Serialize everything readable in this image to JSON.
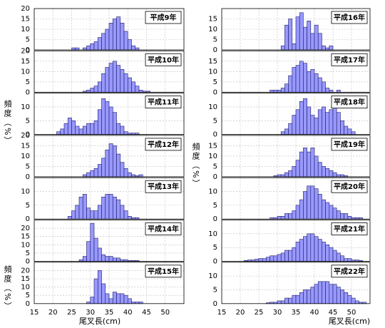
{
  "y_label": "頻度（%）",
  "x_label": "尾叉長(cm)",
  "chart_data": [
    {
      "type": "histogram",
      "title": "平成9年",
      "bins": [
        25,
        26,
        27,
        28,
        29,
        30,
        31,
        32,
        33,
        34,
        35,
        36,
        37,
        38,
        39,
        40,
        41,
        42,
        43
      ],
      "values": [
        1,
        1,
        0,
        1,
        2,
        3,
        4,
        6,
        8,
        10,
        13,
        15,
        16,
        13,
        9,
        5,
        2,
        1
      ],
      "color": "#9999ff",
      "xlim": [
        15,
        55
      ],
      "xticks": [
        15,
        20,
        25,
        30,
        35,
        40,
        45,
        50
      ],
      "ylim": [
        0,
        20
      ],
      "yticks": [
        0,
        5,
        10,
        15,
        20
      ],
      "grid": true
    },
    {
      "type": "histogram",
      "title": "平成10年",
      "bins": [
        28,
        29,
        30,
        31,
        32,
        33,
        34,
        35,
        36,
        37,
        38,
        39,
        40,
        41,
        42,
        43,
        44,
        45,
        46
      ],
      "values": [
        0.5,
        1,
        2,
        3,
        5,
        9,
        12,
        14,
        15,
        13,
        11,
        9,
        7,
        5,
        3,
        1,
        0.5,
        0.5
      ],
      "color": "#9999ff",
      "xlim": [
        15,
        55
      ],
      "xticks": [
        15,
        20,
        25,
        30,
        35,
        40,
        45,
        50
      ],
      "ylim": [
        0,
        20
      ],
      "yticks": [
        0,
        5,
        10,
        15,
        20
      ],
      "grid": true
    },
    {
      "type": "histogram",
      "title": "平成11年",
      "bins": [
        21,
        22,
        23,
        24,
        25,
        26,
        27,
        28,
        29,
        30,
        31,
        32,
        33,
        34,
        35,
        36,
        37,
        38,
        39,
        40,
        41,
        42,
        43
      ],
      "values": [
        1,
        2,
        4,
        6,
        5,
        3,
        2,
        3,
        4,
        4,
        5,
        9,
        13,
        12,
        10,
        8,
        4,
        3,
        1,
        0.5,
        0.5,
        0.5
      ],
      "color": "#9999ff",
      "xlim": [
        15,
        55
      ],
      "xticks": [
        15,
        20,
        25,
        30,
        35,
        40,
        45,
        50
      ],
      "ylim": [
        0,
        15
      ],
      "yticks": [
        0,
        5,
        10
      ],
      "grid": true
    },
    {
      "type": "histogram",
      "title": "平成12年",
      "bins": [
        28,
        29,
        30,
        31,
        32,
        33,
        34,
        35,
        36,
        37,
        38,
        39,
        40,
        41,
        42,
        43,
        44
      ],
      "values": [
        1,
        2,
        3,
        4,
        6,
        9,
        13,
        16,
        15,
        11,
        7,
        4,
        2,
        1,
        0.5,
        1
      ],
      "color": "#9999ff",
      "xlim": [
        15,
        55
      ],
      "xticks": [
        15,
        20,
        25,
        30,
        35,
        40,
        45,
        50
      ],
      "ylim": [
        0,
        20
      ],
      "yticks": [
        0,
        5,
        10,
        15,
        20
      ],
      "grid": true
    },
    {
      "type": "histogram",
      "title": "平成13年",
      "bins": [
        24,
        25,
        26,
        27,
        28,
        29,
        30,
        31,
        32,
        33,
        34,
        35,
        36,
        37,
        38,
        39,
        40,
        41,
        42,
        43
      ],
      "values": [
        1,
        3,
        5,
        8,
        9,
        4,
        3,
        3,
        5,
        8,
        9,
        9,
        8,
        7,
        5,
        3,
        1,
        0.5,
        0.5
      ],
      "color": "#9999ff",
      "xlim": [
        15,
        55
      ],
      "xticks": [
        15,
        20,
        25,
        30,
        35,
        40,
        45,
        50
      ],
      "ylim": [
        0,
        15
      ],
      "yticks": [
        0,
        5,
        10
      ],
      "grid": true
    },
    {
      "type": "histogram",
      "title": "平成14年",
      "bins": [
        27,
        28,
        29,
        30,
        31,
        32,
        33,
        34,
        35,
        36,
        37,
        38,
        39,
        40,
        41,
        42,
        43
      ],
      "values": [
        1,
        3,
        12,
        23,
        14,
        8,
        4,
        3,
        3,
        2,
        2,
        1,
        1,
        0.5,
        0.5,
        0.5
      ],
      "color": "#9999ff",
      "xlim": [
        15,
        55
      ],
      "xticks": [
        15,
        20,
        25,
        30,
        35,
        40,
        45,
        50
      ],
      "ylim": [
        0,
        25
      ],
      "yticks": [
        0,
        5,
        10,
        15,
        20
      ],
      "grid": true
    },
    {
      "type": "histogram",
      "title": "平成15年",
      "bins": [
        29,
        30,
        31,
        32,
        33,
        34,
        35,
        36,
        37,
        38,
        39,
        40,
        41,
        42,
        43,
        44
      ],
      "values": [
        1,
        4,
        15,
        20,
        12,
        6,
        3,
        7,
        6,
        6,
        5,
        3,
        1,
        1,
        1
      ],
      "color": "#9999ff",
      "xlim": [
        15,
        55
      ],
      "xticks": [
        15,
        20,
        25,
        30,
        35,
        40,
        45,
        50
      ],
      "ylim": [
        0,
        25
      ],
      "yticks": [
        0,
        5,
        10,
        15,
        20
      ],
      "grid": true
    },
    {
      "type": "histogram",
      "title": "平成16年",
      "bins": [
        31,
        32,
        33,
        34,
        35,
        36,
        37,
        38,
        39,
        40,
        41,
        42,
        43,
        44,
        45
      ],
      "values": [
        2,
        12,
        15,
        3,
        16,
        18,
        11,
        14,
        8,
        12,
        8,
        2,
        1,
        2
      ],
      "color": "#9999ff",
      "xlim": [
        15,
        55
      ],
      "xticks": [
        15,
        20,
        25,
        30,
        35,
        40,
        45,
        50
      ],
      "ylim": [
        0,
        20
      ],
      "yticks": [
        0,
        5,
        10,
        15
      ],
      "grid": true
    },
    {
      "type": "histogram",
      "title": "平成17年",
      "bins": [
        28,
        29,
        30,
        31,
        32,
        33,
        34,
        35,
        36,
        37,
        38,
        39,
        40,
        41,
        42,
        43,
        44,
        45,
        46,
        47
      ],
      "values": [
        1,
        1,
        1,
        2,
        4,
        8,
        12,
        13,
        15,
        14,
        10,
        11,
        9,
        7,
        5,
        2,
        1,
        0,
        1
      ],
      "color": "#9999ff",
      "xlim": [
        15,
        55
      ],
      "xticks": [
        15,
        20,
        25,
        30,
        35,
        40,
        45,
        50
      ],
      "ylim": [
        0,
        20
      ],
      "yticks": [
        0,
        5,
        10,
        15
      ],
      "grid": true
    },
    {
      "type": "histogram",
      "title": "平成18年",
      "bins": [
        31,
        32,
        33,
        34,
        35,
        36,
        37,
        38,
        39,
        40,
        41,
        42,
        43,
        44,
        45,
        46,
        47,
        48,
        49,
        50,
        51
      ],
      "values": [
        1,
        2,
        4,
        7,
        9,
        12,
        13,
        10,
        7,
        6,
        9,
        10,
        8,
        9,
        10,
        8,
        5,
        3,
        2,
        1
      ],
      "color": "#9999ff",
      "xlim": [
        15,
        55
      ],
      "xticks": [
        15,
        20,
        25,
        30,
        35,
        40,
        45,
        50
      ],
      "ylim": [
        0,
        15
      ],
      "yticks": [
        0,
        5,
        10
      ],
      "grid": true
    },
    {
      "type": "histogram",
      "title": "平成19年",
      "bins": [
        29,
        30,
        31,
        32,
        33,
        34,
        35,
        36,
        37,
        38,
        39,
        40,
        41,
        42,
        43,
        44,
        45,
        46,
        47,
        48,
        49
      ],
      "values": [
        0.5,
        1,
        1,
        2,
        3,
        5,
        8,
        12,
        14,
        12,
        14,
        10,
        7,
        5,
        4,
        3,
        2,
        1,
        1,
        0.5
      ],
      "color": "#9999ff",
      "xlim": [
        15,
        55
      ],
      "xticks": [
        15,
        20,
        25,
        30,
        35,
        40,
        45,
        50
      ],
      "ylim": [
        0,
        20
      ],
      "yticks": [
        0,
        5,
        10,
        15
      ],
      "grid": true
    },
    {
      "type": "histogram",
      "title": "平成20年",
      "bins": [
        28,
        29,
        30,
        31,
        32,
        33,
        34,
        35,
        36,
        37,
        38,
        39,
        40,
        41,
        42,
        43,
        44,
        45,
        46,
        47,
        48,
        49,
        50,
        51,
        52,
        53
      ],
      "values": [
        0.5,
        0.5,
        1,
        1,
        2,
        2,
        3,
        5,
        7,
        10,
        12,
        12,
        11,
        9,
        7,
        6,
        5,
        4,
        3,
        2,
        2,
        1,
        0.5,
        0.5,
        0.5
      ],
      "color": "#9999ff",
      "xlim": [
        15,
        55
      ],
      "xticks": [
        15,
        20,
        25,
        30,
        35,
        40,
        45,
        50
      ],
      "ylim": [
        0,
        15
      ],
      "yticks": [
        0,
        5,
        10
      ],
      "grid": true
    },
    {
      "type": "histogram",
      "title": "平成21年",
      "bins": [
        21,
        22,
        23,
        24,
        25,
        26,
        27,
        28,
        29,
        30,
        31,
        32,
        33,
        34,
        35,
        36,
        37,
        38,
        39,
        40,
        41,
        42,
        43,
        44,
        45,
        46,
        47,
        48,
        49,
        50,
        51,
        52,
        53
      ],
      "values": [
        0.3,
        0.5,
        0.5,
        0.8,
        1,
        1,
        1.5,
        2,
        2,
        2.5,
        3,
        4,
        4,
        5,
        7,
        8,
        9,
        10,
        10,
        9,
        8,
        7,
        6,
        5,
        4,
        3,
        2,
        1,
        1,
        0.5,
        0.5,
        0.3
      ],
      "color": "#9999ff",
      "xlim": [
        15,
        55
      ],
      "xticks": [
        15,
        20,
        25,
        30,
        35,
        40,
        45,
        50
      ],
      "ylim": [
        0,
        15
      ],
      "yticks": [
        0,
        5,
        10
      ],
      "grid": true
    },
    {
      "type": "histogram",
      "title": "平成22年",
      "bins": [
        27,
        28,
        29,
        30,
        31,
        32,
        33,
        34,
        35,
        36,
        37,
        38,
        39,
        40,
        41,
        42,
        43,
        44,
        45,
        46,
        47,
        48,
        49,
        50,
        51,
        52,
        53,
        54
      ],
      "values": [
        0.3,
        0.5,
        0.5,
        1,
        1,
        2,
        2,
        3,
        3,
        4,
        5,
        5,
        6,
        7,
        8,
        8,
        8,
        7,
        7,
        6,
        5,
        4,
        3,
        2,
        1,
        0.5,
        0.5
      ],
      "color": "#9999ff",
      "xlim": [
        15,
        55
      ],
      "xticks": [
        15,
        20,
        25,
        30,
        35,
        40,
        45,
        50
      ],
      "ylim": [
        0,
        15
      ],
      "yticks": [
        0,
        5,
        10
      ],
      "grid": true
    }
  ]
}
